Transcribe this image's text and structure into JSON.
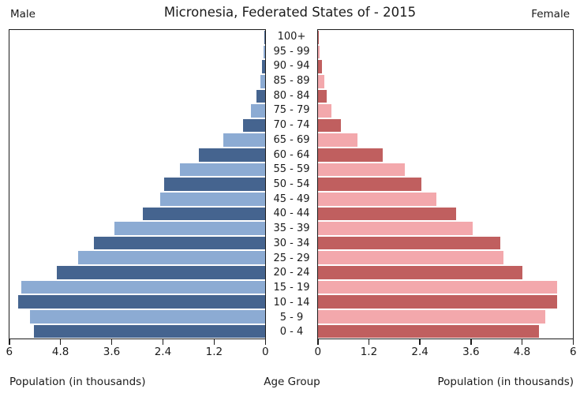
{
  "header": {
    "title": "Micronesia, Federated States of - 2015",
    "male_label": "Male",
    "female_label": "Female"
  },
  "axis_captions": {
    "left": "Population (in thousands)",
    "center": "Age Group",
    "right": "Population (in thousands)"
  },
  "chart_data": {
    "type": "bar",
    "subtype": "population-pyramid",
    "title": "Micronesia, Federated States of - 2015",
    "unit": "thousands",
    "xlim_each_side": [
      0,
      6
    ],
    "grid": false,
    "age_groups": [
      "100+",
      "95 - 99",
      "90 - 94",
      "85 - 89",
      "80 - 84",
      "75 - 79",
      "70 - 74",
      "65 - 69",
      "60 - 64",
      "55 - 59",
      "50 - 54",
      "45 - 49",
      "40 - 44",
      "35 - 39",
      "30 - 34",
      "25 - 29",
      "20 - 24",
      "15 - 19",
      "10 - 14",
      "5 - 9",
      "0 - 4"
    ],
    "series": [
      {
        "name": "Male",
        "side": "left",
        "values": [
          0.01,
          0.03,
          0.07,
          0.12,
          0.2,
          0.33,
          0.52,
          0.99,
          1.55,
          2.0,
          2.37,
          2.47,
          2.87,
          3.53,
          4.02,
          4.39,
          4.88,
          5.72,
          5.79,
          5.52,
          5.43
        ]
      },
      {
        "name": "Female",
        "side": "right",
        "values": [
          0.02,
          0.04,
          0.09,
          0.14,
          0.21,
          0.32,
          0.54,
          0.93,
          1.53,
          2.04,
          2.43,
          2.78,
          3.26,
          3.64,
          4.3,
          4.36,
          4.81,
          5.63,
          5.63,
          5.35,
          5.2
        ]
      }
    ],
    "left_axis_ticks": [
      "6",
      "4.8",
      "3.6",
      "2.4",
      "1.2",
      "0"
    ],
    "right_axis_ticks": [
      "0",
      "1.2",
      "2.4",
      "3.6",
      "4.8",
      "6"
    ],
    "colors": {
      "male_dark": "#45648f",
      "male_light": "#8cabd3",
      "female_dark": "#c05f5f",
      "female_light": "#f3a8ac",
      "axis": "#1c1c1c",
      "text": "#1a1a1a"
    }
  }
}
